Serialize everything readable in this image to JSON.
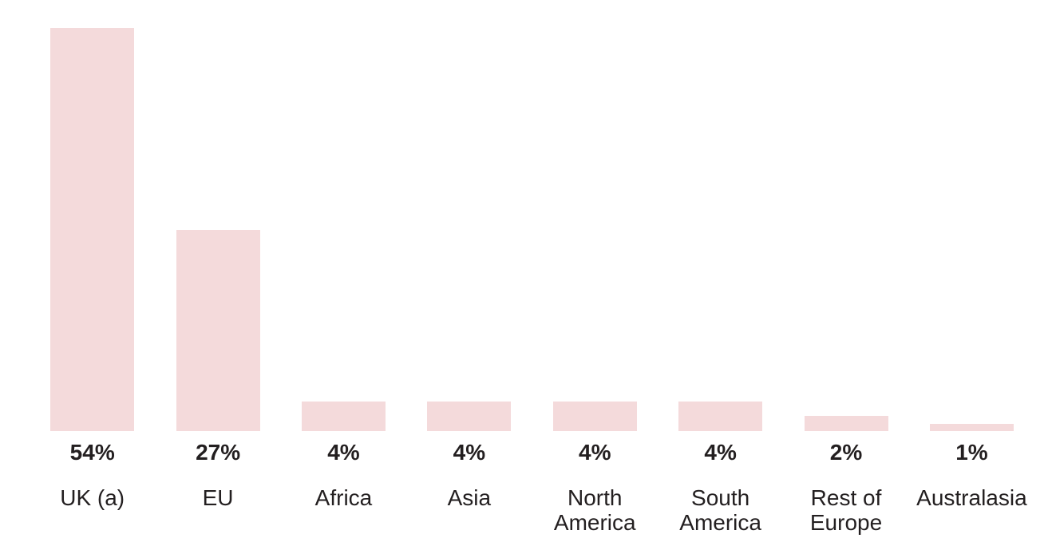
{
  "chart_data": {
    "type": "bar",
    "title": "",
    "xlabel": "",
    "ylabel": "",
    "categories": [
      "UK (a)",
      "EU",
      "Africa",
      "Asia",
      "North America",
      "South America",
      "Rest of Europe",
      "Australasia"
    ],
    "values": [
      54,
      27,
      4,
      4,
      4,
      4,
      2,
      1
    ],
    "value_labels": [
      "54%",
      "27%",
      "4%",
      "4%",
      "4%",
      "4%",
      "2%",
      "1%"
    ],
    "ylim": [
      0,
      54
    ],
    "grid": false,
    "legend": false,
    "axes_visible": false,
    "bar_color": "#f4dadb",
    "label_color": "#231f20"
  }
}
